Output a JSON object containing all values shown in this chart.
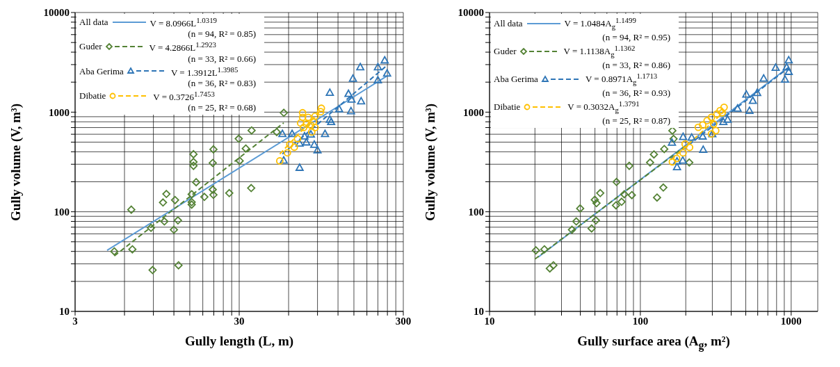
{
  "chart_data": [
    {
      "type": "scatter",
      "xlabel": "Gully length (L, m)",
      "ylabel": "Gully volume (V, m³)",
      "log": "xy",
      "grid": true,
      "legend": "top left",
      "xlim": [
        3,
        300
      ],
      "ylim": [
        10,
        10000
      ],
      "xticks": [
        3,
        {
          "value": 6,
          "label": null
        },
        {
          "value": 9,
          "label": null
        },
        {
          "value": 12,
          "label": null
        },
        {
          "value": 15,
          "label": null
        },
        {
          "value": 18,
          "label": null
        },
        {
          "value": 21,
          "label": null
        },
        {
          "value": 24,
          "label": null
        },
        {
          "value": 27,
          "label": null
        },
        30,
        {
          "value": 60,
          "label": null
        },
        {
          "value": 90,
          "label": null
        },
        {
          "value": 120,
          "label": null
        },
        {
          "value": 150,
          "label": null
        },
        {
          "value": 180,
          "label": null
        },
        {
          "value": 210,
          "label": null
        },
        {
          "value": 240,
          "label": null
        },
        {
          "value": 270,
          "label": null
        },
        300
      ],
      "yticks": [
        10,
        {
          "value": 20,
          "label": null
        },
        {
          "value": 30,
          "label": null
        },
        {
          "value": 40,
          "label": null
        },
        {
          "value": 50,
          "label": null
        },
        {
          "value": 60,
          "label": null
        },
        {
          "value": 70,
          "label": null
        },
        {
          "value": 80,
          "label": null
        },
        {
          "value": 90,
          "label": null
        },
        100,
        {
          "value": 200,
          "label": null
        },
        {
          "value": 300,
          "label": null
        },
        {
          "value": 400,
          "label": null
        },
        {
          "value": 500,
          "label": null
        },
        {
          "value": 600,
          "label": null
        },
        {
          "value": 700,
          "label": null
        },
        {
          "value": 800,
          "label": null
        },
        {
          "value": 900,
          "label": null
        },
        1000,
        {
          "value": 2000,
          "label": null
        },
        {
          "value": 3000,
          "label": null
        },
        {
          "value": 4000,
          "label": null
        },
        {
          "value": 5000,
          "label": null
        },
        {
          "value": 6000,
          "label": null
        },
        {
          "value": 7000,
          "label": null
        },
        {
          "value": 8000,
          "label": null
        },
        {
          "value": 9000,
          "label": null
        },
        10000
      ],
      "annotations": [
        "V = 8.0966L$^{1.0319}$",
        "(n = 94, R² = 0.85)",
        "V = 4.2866L$^{1.2923}$",
        "(n = 33, R² = 0.66)",
        "V = 1.3912L$^{1.3985}$",
        "(n = 36, R² = 0.83)",
        "V = 0.3726$^{1.7453}$",
        "(n = 25, R² = 0.68)"
      ],
      "series": [
        {
          "name": "All data",
          "type": "line",
          "line_style": "solid",
          "color": "#5b9bd5",
          "x": [
            4.7,
            243
          ],
          "values": [
            41,
            2350
          ]
        },
        {
          "marker": "diamond",
          "color": "#548235",
          "x": [
            5.2,
            6.7,
            6.6,
            8.9,
            8.7,
            10.3,
            10.8,
            10.5,
            12.2,
            12.7,
            12.0,
            12.8,
            15.8,
            15.8,
            15.8,
            15.4,
            15.4,
            15.4,
            16.4,
            18.4,
            20.9,
            20.7,
            20.7,
            20.9,
            26.1,
            29.8,
            30.2,
            32.9,
            35.7,
            35.5,
            50.8,
            56.1
          ],
          "values": [
            40,
            42,
            105,
            26,
            69,
            124,
            151,
            80,
            131,
            82,
            66,
            29,
            378,
            316,
            289,
            150,
            125,
            118,
            198,
            141,
            423,
            309,
            167,
            148,
            154,
            541,
            324,
            431,
            655,
            173,
            632,
            985
          ]
        },
        {
          "name": "Guder",
          "type": "line",
          "line_style": "dashed",
          "color": "#548235",
          "x": [
            5.2,
            56
          ],
          "values": [
            36,
            780
          ]
        },
        {
          "marker": "triangle",
          "color": "#2e75b6",
          "x": [
            231,
            164,
            210,
            239,
            210,
            148,
            107,
            139,
            145,
            166,
            122,
            144,
            107,
            109,
            100,
            55,
            63,
            75,
            77,
            70,
            86,
            90,
            70,
            56,
            82
          ],
          "values": [
            3327,
            2843,
            2843,
            2455,
            2099,
            2178,
            1574,
            1534,
            1347,
            1291,
            1076,
            1028,
            845,
            800,
            608,
            608,
            608,
            575,
            500,
            487,
            474,
            416,
            278,
            329,
            600
          ]
        },
        {
          "name": "Aba Gerima",
          "type": "line",
          "line_style": "dashed",
          "color": "#2e75b6",
          "x": [
            55,
            240
          ],
          "values": [
            380,
            2970
          ]
        },
        {
          "marker": "circle",
          "color": "#ffc000",
          "x": [
            53,
            59,
            61,
            65,
            68,
            73,
            73,
            74,
            79,
            82,
            83,
            85,
            87,
            95,
            94,
            77,
            87,
            71
          ],
          "values": [
            324,
            391,
            474,
            445,
            541,
            985,
            887,
            701,
            887,
            740,
            632,
            800,
            910,
            1094,
            1011,
            759,
            701,
            778
          ]
        },
        {
          "name": "Dibatie",
          "type": "line",
          "line_style": "dashed",
          "color": "#ffc000",
          "x": [
            53,
            95
          ],
          "values": [
            380,
            1055
          ]
        }
      ]
    },
    {
      "type": "scatter",
      "xlabel": "Gully surface area (A$_{g}$, m²)",
      "ylabel": "Gully volume (V, m³)",
      "log": "xy",
      "grid": true,
      "legend": "top left",
      "xlim": [
        10,
        1500
      ],
      "ylim": [
        10,
        10000
      ],
      "xticks": [
        10,
        {
          "value": 20,
          "label": null
        },
        {
          "value": 30,
          "label": null
        },
        {
          "value": 40,
          "label": null
        },
        {
          "value": 50,
          "label": null
        },
        {
          "value": 60,
          "label": null
        },
        {
          "value": 70,
          "label": null
        },
        {
          "value": 80,
          "label": null
        },
        {
          "value": 90,
          "label": null
        },
        100,
        {
          "value": 200,
          "label": null
        },
        {
          "value": 300,
          "label": null
        },
        {
          "value": 400,
          "label": null
        },
        {
          "value": 500,
          "label": null
        },
        {
          "value": 600,
          "label": null
        },
        {
          "value": 700,
          "label": null
        },
        {
          "value": 800,
          "label": null
        },
        {
          "value": 900,
          "label": null
        },
        1000
      ],
      "yticks": [
        10,
        {
          "value": 20,
          "label": null
        },
        {
          "value": 30,
          "label": null
        },
        {
          "value": 40,
          "label": null
        },
        {
          "value": 50,
          "label": null
        },
        {
          "value": 60,
          "label": null
        },
        {
          "value": 70,
          "label": null
        },
        {
          "value": 80,
          "label": null
        },
        {
          "value": 90,
          "label": null
        },
        100,
        {
          "value": 200,
          "label": null
        },
        {
          "value": 300,
          "label": null
        },
        {
          "value": 400,
          "label": null
        },
        {
          "value": 500,
          "label": null
        },
        {
          "value": 600,
          "label": null
        },
        {
          "value": 700,
          "label": null
        },
        {
          "value": 800,
          "label": null
        },
        {
          "value": 900,
          "label": null
        },
        1000,
        {
          "value": 2000,
          "label": null
        },
        {
          "value": 3000,
          "label": null
        },
        {
          "value": 4000,
          "label": null
        },
        {
          "value": 5000,
          "label": null
        },
        {
          "value": 6000,
          "label": null
        },
        {
          "value": 7000,
          "label": null
        },
        {
          "value": 8000,
          "label": null
        },
        {
          "value": 9000,
          "label": null
        },
        10000
      ],
      "annotations": [
        "V = 1.0484A$_{g}$$^{1.1499}$",
        "(n = 94, R² = 0.95)",
        "V = 1.1138A$_{g}$$^{1.1362}$",
        "(n = 33, R² = 0.86)",
        "V = 0.8971A$_{g}$$^{1.1713}$",
        "(n = 36, R² = 0.93)",
        "V = 0.3032A$_{g}$$^{1.3791}$",
        "(n = 25, R² = 0.87)"
      ],
      "series": [
        {
          "name": "All data",
          "type": "line",
          "line_style": "solid",
          "color": "#5b9bd5",
          "x": [
            21,
            960
          ],
          "values": [
            35,
            2820
          ]
        },
        {
          "marker": "diamond",
          "color": "#548235",
          "x": [
            20.3,
            23.1,
            25.1,
            26.5,
            35.2,
            37.6,
            39.9,
            47.5,
            49.9,
            51.2,
            50.7,
            54.2,
            68.9,
            69.5,
            75.1,
            78.2,
            87.8,
            84.4,
            116,
            123,
            129,
            142,
            144,
            163,
            166,
            211
          ],
          "values": [
            41,
            42,
            27,
            29,
            66,
            80,
            108,
            68,
            132,
            122,
            82,
            154,
            116,
            199,
            126,
            150,
            147,
            289,
            312,
            376,
            139,
            175,
            426,
            652,
            539,
            312
          ]
        },
        {
          "name": "Guder",
          "type": "line",
          "line_style": "dashed",
          "color": "#548235",
          "x": [
            20,
            210
          ],
          "values": [
            33.5,
            485
          ]
        },
        {
          "marker": "triangle",
          "color": "#2e75b6",
          "x": [
            963,
            933,
            789,
            963,
            910,
            657,
            595,
            504,
            557,
            529,
            441,
            379,
            355,
            300,
            259,
            261,
            192,
            219,
            162,
            175,
            191,
            175
          ],
          "values": [
            3334,
            2831,
            2806,
            2552,
            2133,
            2188,
            1567,
            1510,
            1306,
            1036,
            1092,
            844,
            802,
            604,
            573,
            421,
            568,
            558,
            497,
            282,
            329,
            322
          ]
        },
        {
          "name": "Aba Gerima",
          "type": "line",
          "line_style": "dashed",
          "color": "#2e75b6",
          "x": [
            160,
            960
          ],
          "values": [
            342,
            2792
          ]
        },
        {
          "marker": "circle",
          "color": "#ffc000",
          "x": [
            359,
            338,
            322,
            296,
            277,
            306,
            259,
            242,
            316,
            296,
            198,
            212,
            192,
            174,
            163,
            349
          ],
          "values": [
            1119,
            1036,
            959,
            888,
            822,
            761,
            742,
            705,
            652,
            604,
            479,
            443,
            390,
            343,
            317,
            985
          ]
        },
        {
          "name": "Dibatie",
          "type": "line",
          "line_style": "dashed",
          "color": "#ffc000",
          "x": [
            160,
            360
          ],
          "values": [
            332,
            1016
          ]
        }
      ]
    }
  ]
}
